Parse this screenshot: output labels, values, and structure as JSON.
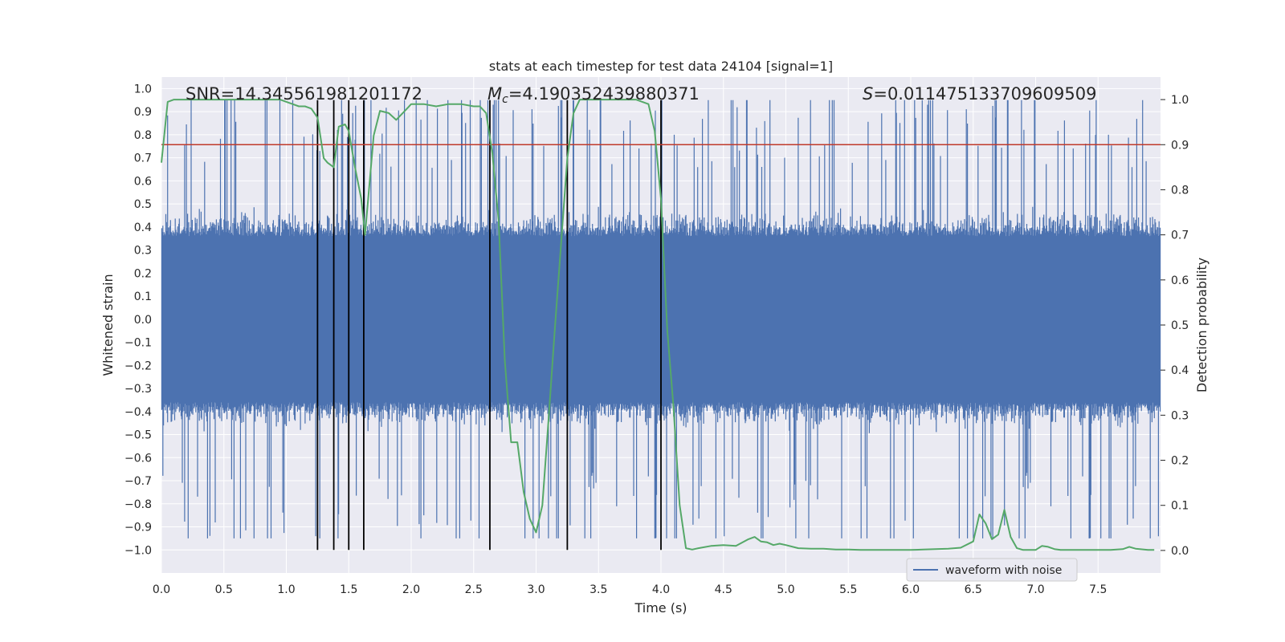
{
  "chart_data": {
    "type": "line",
    "title": "stats at each timestep for test data 24104 [signal=1]",
    "xlabel": "Time (s)",
    "ylabel": "Whitened strain",
    "y2label": "Detection probability",
    "xlim": [
      0.0,
      8.0
    ],
    "ylim": [
      -1.1,
      1.05
    ],
    "y2lim": [
      -0.05,
      1.05
    ],
    "xticks": [
      "0.0",
      "0.5",
      "1.0",
      "1.5",
      "2.0",
      "2.5",
      "3.0",
      "3.5",
      "4.0",
      "4.5",
      "5.0",
      "5.5",
      "6.0",
      "6.5",
      "7.0",
      "7.5"
    ],
    "yticks": [
      "1.0",
      "0.9",
      "0.8",
      "0.7",
      "0.6",
      "0.5",
      "0.4",
      "0.3",
      "0.2",
      "0.1",
      "0.0",
      "-0.1",
      "-0.2",
      "-0.3",
      "-0.4",
      "-0.5",
      "-0.6",
      "-0.7",
      "-0.8",
      "-0.9",
      "-1.0"
    ],
    "y2ticks": [
      "1.0",
      "0.9",
      "0.8",
      "0.7",
      "0.6",
      "0.5",
      "0.4",
      "0.3",
      "0.2",
      "0.1",
      "0.0"
    ],
    "annotations": {
      "snr": "SNR=14.345561981201172",
      "mc": "=4.190352439880371",
      "mc_symbol": "M",
      "mc_sub": "c",
      "s": "=0.011475133709609509",
      "s_symbol": "S"
    },
    "threshold": {
      "value": 0.9,
      "axis": "y2",
      "color": "#c0392b"
    },
    "vlines": [
      1.25,
      1.38,
      1.5,
      1.62,
      2.63,
      3.25,
      4.0
    ],
    "vline_y_range": [
      -1.0,
      0.95
    ],
    "legend": {
      "label": "waveform with noise",
      "location": "bottom-right"
    },
    "series": [
      {
        "name": "waveform with noise",
        "axis": "y",
        "color": "#4c72b0",
        "description": "dense noisy strain, core band about -0.4 to 0.4, spikes to +/-0.95",
        "envelope": {
          "core": 0.4,
          "spike_max": 0.95
        }
      },
      {
        "name": "detection probability",
        "axis": "y2",
        "color": "#55a868",
        "x": [
          0.0,
          0.05,
          0.1,
          0.2,
          0.4,
          0.6,
          0.8,
          0.95,
          1.05,
          1.1,
          1.15,
          1.2,
          1.25,
          1.3,
          1.33,
          1.38,
          1.42,
          1.47,
          1.5,
          1.55,
          1.6,
          1.63,
          1.7,
          1.75,
          1.82,
          1.88,
          1.95,
          2.0,
          2.1,
          2.2,
          2.3,
          2.4,
          2.5,
          2.55,
          2.6,
          2.65,
          2.7,
          2.75,
          2.8,
          2.85,
          2.9,
          2.95,
          3.0,
          3.05,
          3.1,
          3.15,
          3.2,
          3.25,
          3.3,
          3.35,
          3.4,
          3.5,
          3.6,
          3.7,
          3.8,
          3.9,
          3.95,
          4.0,
          4.05,
          4.1,
          4.15,
          4.2,
          4.25,
          4.3,
          4.4,
          4.5,
          4.6,
          4.7,
          4.75,
          4.8,
          4.85,
          4.9,
          4.95,
          5.0,
          5.1,
          5.2,
          5.3,
          5.4,
          5.5,
          5.6,
          5.7,
          5.8,
          5.9,
          6.0,
          6.1,
          6.2,
          6.3,
          6.4,
          6.5,
          6.55,
          6.6,
          6.65,
          6.7,
          6.75,
          6.8,
          6.85,
          6.9,
          6.95,
          7.0,
          7.05,
          7.1,
          7.15,
          7.2,
          7.3,
          7.4,
          7.5,
          7.6,
          7.7,
          7.75,
          7.8,
          7.9,
          7.95
        ],
        "y": [
          0.86,
          0.995,
          1.0,
          1.0,
          1.0,
          1.0,
          1.0,
          1.0,
          0.99,
          0.985,
          0.985,
          0.98,
          0.96,
          0.87,
          0.86,
          0.85,
          0.94,
          0.945,
          0.93,
          0.85,
          0.78,
          0.7,
          0.92,
          0.975,
          0.97,
          0.955,
          0.975,
          0.99,
          0.99,
          0.985,
          0.99,
          0.99,
          0.985,
          0.985,
          0.97,
          0.88,
          0.73,
          0.42,
          0.24,
          0.24,
          0.13,
          0.07,
          0.04,
          0.1,
          0.29,
          0.49,
          0.68,
          0.87,
          0.97,
          1.0,
          1.0,
          1.0,
          1.0,
          1.0,
          1.0,
          0.99,
          0.93,
          0.78,
          0.49,
          0.32,
          0.1,
          0.005,
          0.002,
          0.005,
          0.01,
          0.012,
          0.01,
          0.025,
          0.03,
          0.02,
          0.018,
          0.012,
          0.015,
          0.012,
          0.005,
          0.004,
          0.004,
          0.002,
          0.002,
          0.001,
          0.001,
          0.001,
          0.001,
          0.001,
          0.002,
          0.003,
          0.004,
          0.006,
          0.02,
          0.08,
          0.06,
          0.025,
          0.035,
          0.09,
          0.03,
          0.005,
          0.001,
          0.001,
          0.001,
          0.01,
          0.008,
          0.003,
          0.001,
          0.001,
          0.001,
          0.001,
          0.001,
          0.003,
          0.008,
          0.004,
          0.001,
          0.001
        ]
      }
    ]
  }
}
